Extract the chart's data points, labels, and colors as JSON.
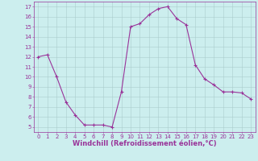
{
  "x": [
    0,
    1,
    2,
    3,
    4,
    5,
    6,
    7,
    8,
    9,
    10,
    11,
    12,
    13,
    14,
    15,
    16,
    17,
    18,
    19,
    20,
    21,
    22,
    23
  ],
  "y": [
    12,
    12.2,
    10,
    7.5,
    6.2,
    5.2,
    5.2,
    5.2,
    5.0,
    8.5,
    15.0,
    15.3,
    16.2,
    16.8,
    17.0,
    15.8,
    15.2,
    11.2,
    9.8,
    9.2,
    8.5,
    8.5,
    8.4,
    7.8
  ],
  "line_color": "#993399",
  "marker": "+",
  "marker_size": 3,
  "background_color": "#cceeee",
  "grid_color": "#aacccc",
  "axes_color": "#993399",
  "xlabel": "Windchill (Refroidissement éolien,°C)",
  "xlim": [
    -0.5,
    23.5
  ],
  "ylim": [
    4.5,
    17.5
  ],
  "yticks": [
    5,
    6,
    7,
    8,
    9,
    10,
    11,
    12,
    13,
    14,
    15,
    16,
    17
  ],
  "xticks": [
    0,
    1,
    2,
    3,
    4,
    5,
    6,
    7,
    8,
    9,
    10,
    11,
    12,
    13,
    14,
    15,
    16,
    17,
    18,
    19,
    20,
    21,
    22,
    23
  ],
  "tick_fontsize": 5.0,
  "xlabel_fontsize": 6.0,
  "line_width": 0.8
}
